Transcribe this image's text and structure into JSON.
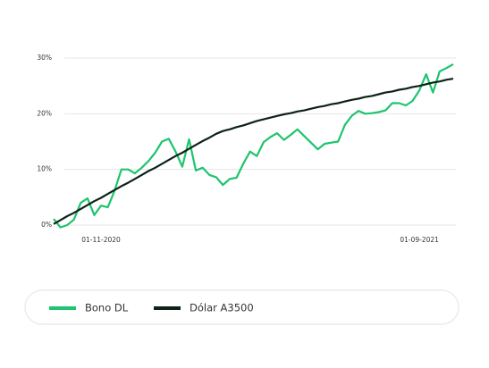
{
  "chart_data": {
    "type": "line",
    "categories": [
      null,
      null,
      null,
      null,
      null,
      null,
      null,
      "01-11-2020",
      null,
      null,
      null,
      null,
      null,
      null,
      null,
      null,
      null,
      null,
      null,
      null,
      null,
      null,
      null,
      null,
      null,
      null,
      null,
      null,
      null,
      null,
      null,
      null,
      null,
      null,
      null,
      null,
      null,
      null,
      null,
      null,
      null,
      null,
      null,
      null,
      null,
      null,
      null,
      null,
      null,
      null,
      null,
      null,
      null,
      null,
      "01-09-2021",
      null,
      null,
      null,
      null,
      null
    ],
    "series": [
      {
        "name": "Bono DL",
        "color": "#1ec46f",
        "values": [
          1.1,
          -0.4,
          0,
          1.0,
          4.0,
          4.8,
          1.8,
          3.5,
          3.2,
          6.2,
          10.0,
          10.0,
          9.3,
          10.3,
          11.5,
          13.0,
          15.0,
          15.5,
          13.2,
          10.5,
          15.4,
          9.8,
          10.3,
          9.0,
          8.6,
          7.2,
          8.3,
          8.5,
          11.0,
          13.2,
          12.4,
          14.9,
          15.8,
          16.5,
          15.3,
          16.2,
          17.2,
          16.0,
          14.8,
          13.6,
          14.6,
          14.8,
          15.0,
          18.0,
          19.6,
          20.5,
          20.0,
          20.1,
          20.3,
          20.6,
          21.9,
          21.9,
          21.5,
          22.3,
          24.2,
          27.1,
          23.8,
          27.6,
          28.2,
          28.9
        ]
      },
      {
        "name": "Dólar A3500",
        "color": "#0e2217",
        "values": [
          0.2,
          0.9,
          1.6,
          2.2,
          2.9,
          3.6,
          4.3,
          4.9,
          5.6,
          6.3,
          7.0,
          7.6,
          8.3,
          9.0,
          9.7,
          10.3,
          11.0,
          11.7,
          12.4,
          13.0,
          13.7,
          14.4,
          15.1,
          15.7,
          16.4,
          16.9,
          17.2,
          17.6,
          17.9,
          18.3,
          18.7,
          19.0,
          19.3,
          19.6,
          19.9,
          20.1,
          20.4,
          20.6,
          20.9,
          21.2,
          21.4,
          21.7,
          21.9,
          22.2,
          22.5,
          22.7,
          23.0,
          23.2,
          23.5,
          23.8,
          24.0,
          24.3,
          24.5,
          24.8,
          25.0,
          25.3,
          25.6,
          25.8,
          26.1,
          26.3
        ]
      }
    ],
    "ylim": [
      0,
      30
    ],
    "yticks": [
      {
        "value": 0,
        "label": "0%"
      },
      {
        "value": 10,
        "label": "10%"
      },
      {
        "value": 20,
        "label": "20%"
      },
      {
        "value": 30,
        "label": "30%"
      }
    ],
    "grid": true
  }
}
